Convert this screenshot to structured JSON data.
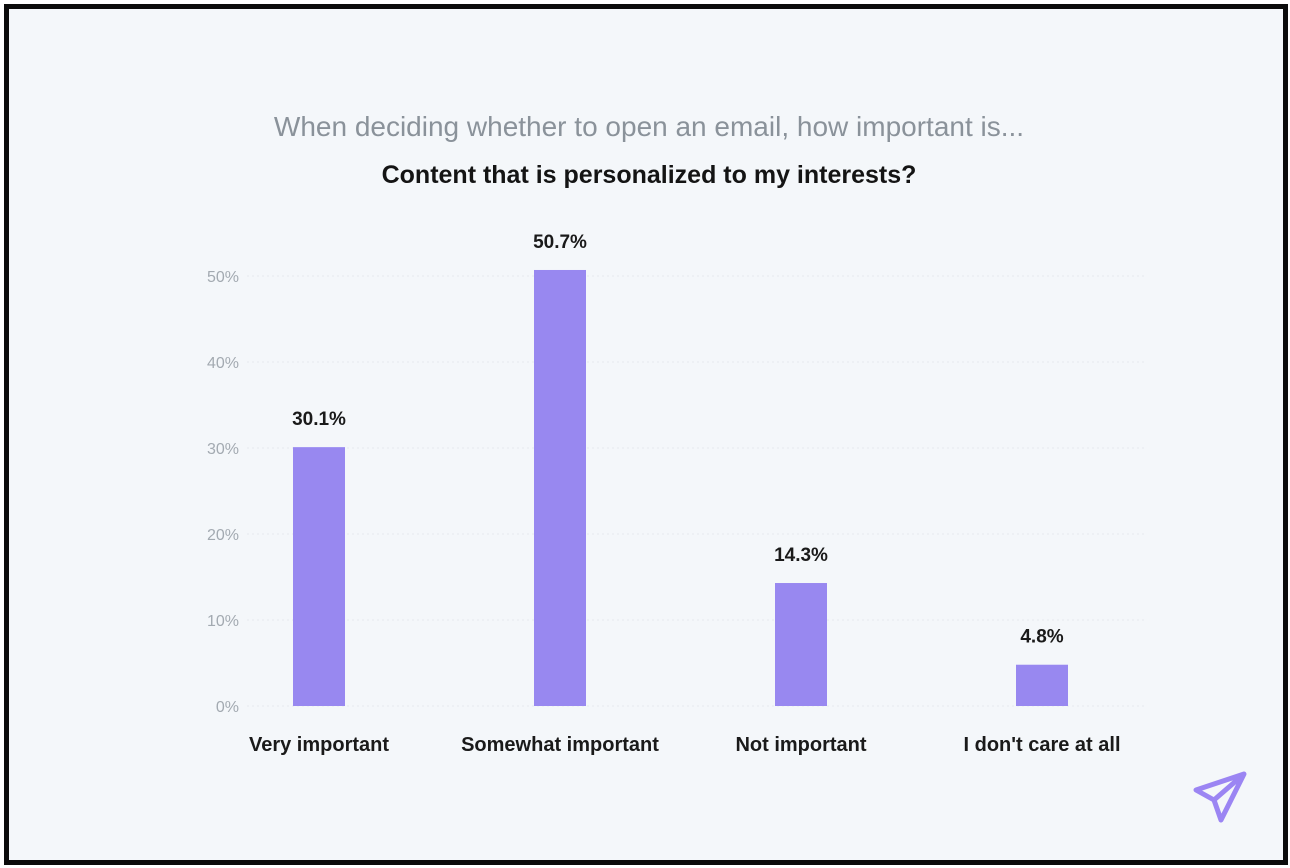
{
  "chart_data": {
    "type": "bar",
    "subtitle": "When deciding whether to open an email, how important is...",
    "title": "Content that is personalized to my interests?",
    "categories": [
      "Very important",
      "Somewhat important",
      "Not important",
      "I don't care at all"
    ],
    "values": [
      30.1,
      50.7,
      14.3,
      4.8
    ],
    "data_labels": [
      "30.1%",
      "50.7%",
      "14.3%",
      "4.8%"
    ],
    "y_ticks": [
      0,
      10,
      20,
      30,
      40,
      50
    ],
    "y_tick_labels": [
      "0%",
      "10%",
      "20%",
      "30%",
      "40%",
      "50%"
    ],
    "ylim": [
      0,
      50
    ],
    "xlabel": "",
    "ylabel": "",
    "grid": true,
    "bar_color": "#9888f0"
  },
  "brand": {
    "icon": "paper-plane-icon",
    "color": "#9b85f3"
  }
}
